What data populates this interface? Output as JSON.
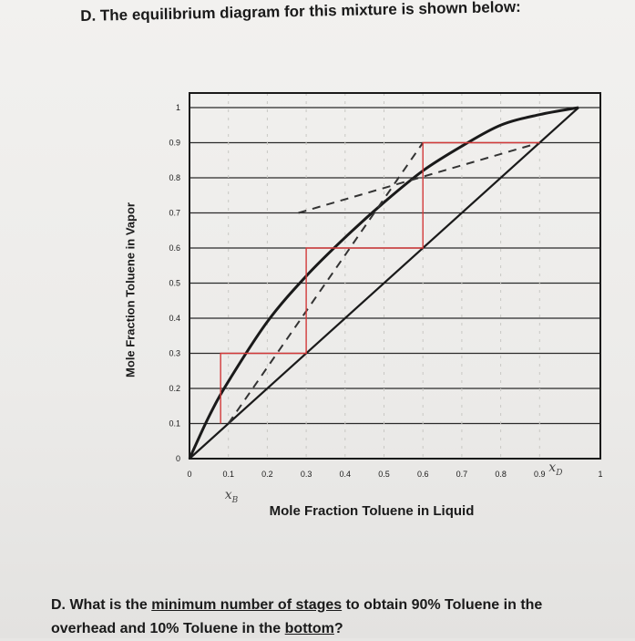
{
  "heading": "D. The equilibrium diagram for this mixture is shown below:",
  "question": {
    "prefix": "D. What is the ",
    "underlined_1": "minimum number of stages",
    "middle": " to obtain 90% Toluene in the",
    "line2_prefix": "overhead and 10% Toluene in the ",
    "underlined_2": "bottom",
    "suffix": "?"
  },
  "chart_data": {
    "type": "line",
    "xlabel": "Mole Fraction Toluene in Liquid",
    "ylabel": "Mole Fraction Toluene in Vapor",
    "xlim": [
      0,
      1
    ],
    "ylim": [
      0,
      1
    ],
    "x_ticks": [
      "0",
      "0.1",
      "0.2",
      "0.3",
      "0.4",
      "0.5",
      "0.6",
      "0.7",
      "0.8",
      "0.9",
      "1"
    ],
    "y_ticks": [
      "0",
      "0.1",
      "0.2",
      "0.3",
      "0.4",
      "0.5",
      "0.6",
      "0.7",
      "0.8",
      "0.9",
      "1"
    ],
    "grid": "horizontal",
    "series": [
      {
        "style": "equilibrium-curve",
        "color": "#1a1a1a",
        "x": [
          0,
          0.05,
          0.1,
          0.2,
          0.3,
          0.4,
          0.5,
          0.6,
          0.7,
          0.8,
          0.9,
          1.0
        ],
        "y": [
          0,
          0.12,
          0.22,
          0.39,
          0.52,
          0.63,
          0.73,
          0.82,
          0.89,
          0.95,
          0.98,
          1.0
        ]
      },
      {
        "style": "diagonal",
        "color": "#1a1a1a",
        "x": [
          0,
          1
        ],
        "y": [
          0,
          1
        ]
      },
      {
        "style": "rectifying-operating-line",
        "color": "#333333",
        "dashed": true,
        "x": [
          0.28,
          0.9
        ],
        "y": [
          0.7,
          0.9
        ]
      },
      {
        "style": "stripping-operating-line",
        "color": "#333333",
        "dashed": true,
        "x": [
          0.1,
          0.6
        ],
        "y": [
          0.1,
          0.9
        ]
      },
      {
        "style": "stage-steps",
        "color": "#d33a3a",
        "x": [
          0.9,
          0.6,
          0.6,
          0.3,
          0.3,
          0.08,
          0.08
        ],
        "y": [
          0.9,
          0.9,
          0.6,
          0.6,
          0.3,
          0.3,
          0.1
        ]
      }
    ],
    "annotations": [
      {
        "text": "x",
        "sub": "D",
        "at": [
          0.9,
          0
        ]
      },
      {
        "text": "x",
        "sub": "B",
        "at": [
          0.1,
          0
        ]
      }
    ]
  }
}
